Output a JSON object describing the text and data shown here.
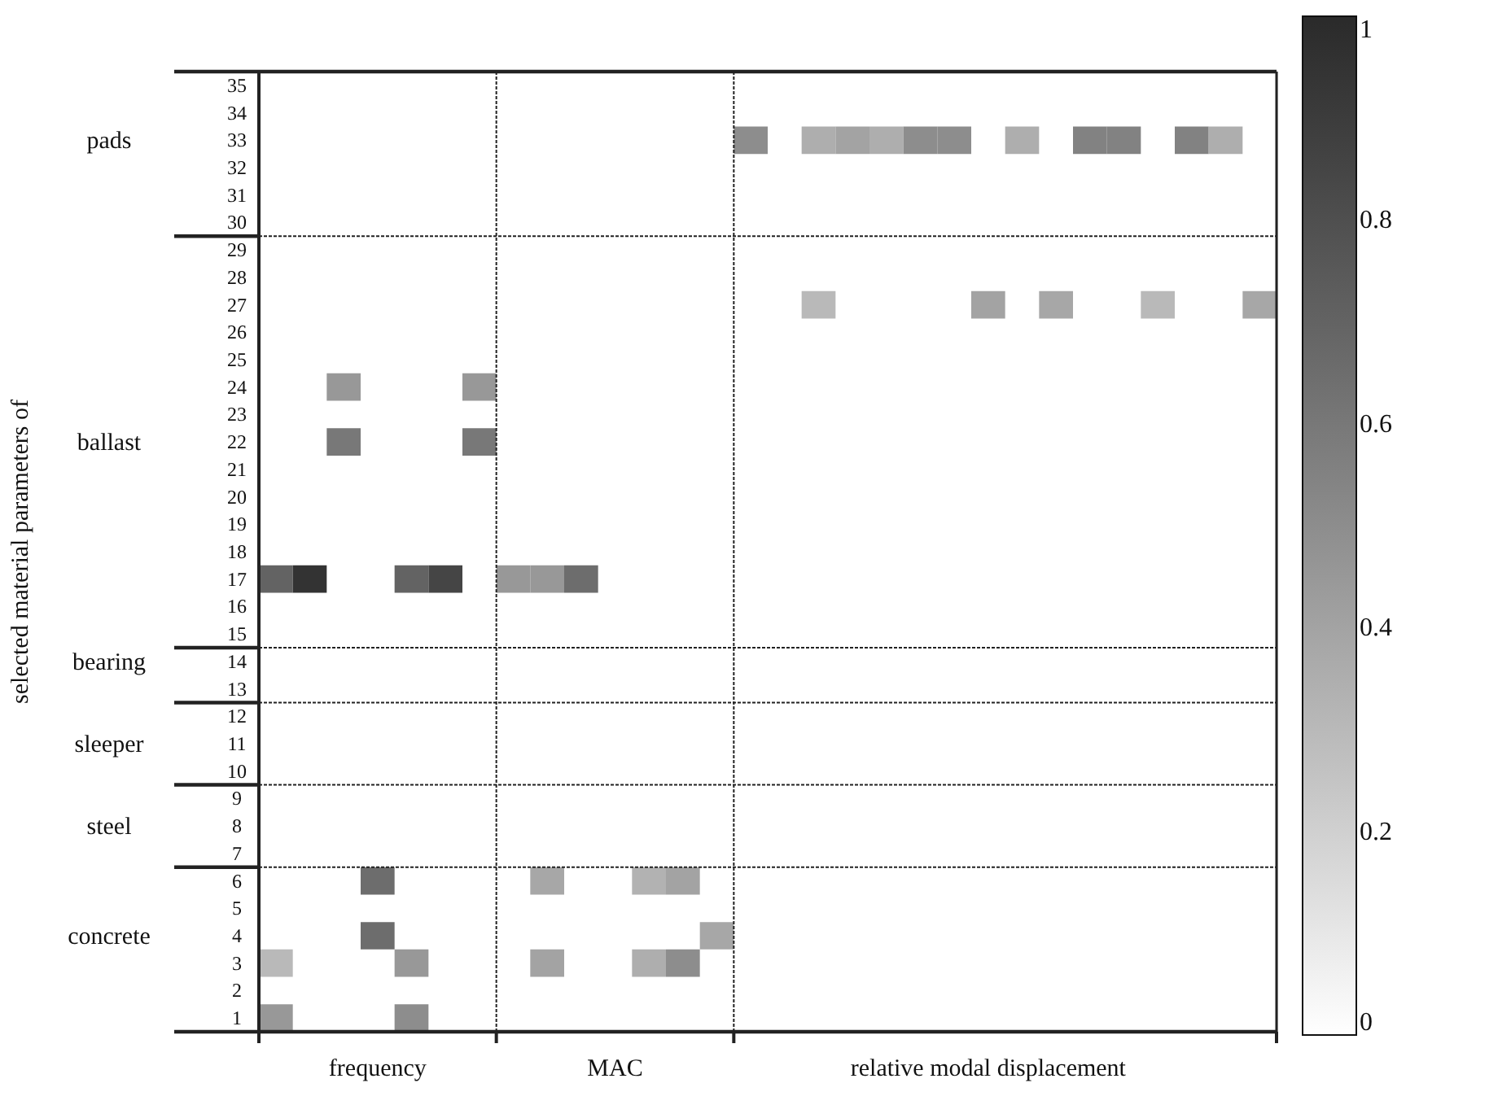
{
  "chart_data": {
    "type": "heatmap",
    "annotations": [
      "selected material parameters of"
    ],
    "categories": [
      null,
      null,
      null,
      "frequency",
      null,
      null,
      null,
      null,
      null,
      null,
      "MAC",
      null,
      null,
      null,
      null,
      null,
      null,
      null,
      null,
      null,
      null,
      "relative modal displacement",
      null,
      null,
      null,
      null,
      null,
      null,
      null,
      null
    ],
    "y2_categories": [
      null,
      null,
      "pads",
      null,
      null,
      null,
      null,
      null,
      null,
      null,
      null,
      null,
      null,
      "ballast",
      null,
      null,
      null,
      null,
      null,
      null,
      null,
      "bearing",
      null,
      null,
      "sleeper",
      null,
      null,
      "steel",
      null,
      null,
      null,
      "concrete",
      null,
      null,
      null
    ],
    "y_categories": [
      "35",
      "34",
      "33",
      "32",
      "31",
      "30",
      "29",
      "28",
      "27",
      "26",
      "25",
      "24",
      "23",
      "22",
      "21",
      "20",
      "19",
      "18",
      "17",
      "16",
      "15",
      "14",
      "13",
      "12",
      "11",
      "10",
      "9",
      "8",
      "7",
      "6",
      "5",
      "4",
      "3",
      "2",
      "1"
    ],
    "cells": [
      [
        null,
        null,
        null,
        null,
        null,
        null,
        null,
        null,
        null,
        null,
        null,
        null,
        null,
        null,
        null,
        null,
        null,
        null,
        null,
        null,
        null,
        null,
        null,
        null,
        null,
        null,
        null,
        null,
        null,
        null
      ],
      [
        null,
        null,
        null,
        null,
        null,
        null,
        null,
        null,
        null,
        null,
        null,
        null,
        null,
        null,
        null,
        null,
        null,
        null,
        null,
        null,
        null,
        null,
        null,
        null,
        null,
        null,
        null,
        null,
        null,
        null
      ],
      [
        null,
        null,
        null,
        null,
        null,
        null,
        null,
        null,
        null,
        null,
        null,
        null,
        null,
        null,
        0.5,
        null,
        0.35,
        0.4,
        0.35,
        0.5,
        0.5,
        null,
        0.35,
        null,
        0.55,
        0.55,
        null,
        0.55,
        0.35,
        null
      ],
      [
        null,
        null,
        null,
        null,
        null,
        null,
        null,
        null,
        null,
        null,
        null,
        null,
        null,
        null,
        null,
        null,
        null,
        null,
        null,
        null,
        null,
        null,
        null,
        null,
        null,
        null,
        null,
        null,
        null,
        null
      ],
      [
        null,
        null,
        null,
        null,
        null,
        null,
        null,
        null,
        null,
        null,
        null,
        null,
        null,
        null,
        null,
        null,
        null,
        null,
        null,
        null,
        null,
        null,
        null,
        null,
        null,
        null,
        null,
        null,
        null,
        null
      ],
      [
        null,
        null,
        null,
        null,
        null,
        null,
        null,
        null,
        null,
        null,
        null,
        null,
        null,
        null,
        null,
        null,
        null,
        null,
        null,
        null,
        null,
        null,
        null,
        null,
        null,
        null,
        null,
        null,
        null,
        null
      ],
      [
        null,
        null,
        null,
        null,
        null,
        null,
        null,
        null,
        null,
        null,
        null,
        null,
        null,
        null,
        null,
        null,
        null,
        null,
        null,
        null,
        null,
        null,
        null,
        null,
        null,
        null,
        null,
        null,
        null,
        null
      ],
      [
        null,
        null,
        null,
        null,
        null,
        null,
        null,
        null,
        null,
        null,
        null,
        null,
        null,
        null,
        null,
        null,
        null,
        null,
        null,
        null,
        null,
        null,
        null,
        null,
        null,
        null,
        null,
        null,
        null,
        null
      ],
      [
        null,
        null,
        null,
        null,
        null,
        null,
        null,
        null,
        null,
        null,
        null,
        null,
        null,
        null,
        null,
        null,
        0.3,
        null,
        null,
        null,
        null,
        0.4,
        null,
        0.38,
        null,
        null,
        0.3,
        null,
        null,
        0.38
      ],
      [
        null,
        null,
        null,
        null,
        null,
        null,
        null,
        null,
        null,
        null,
        null,
        null,
        null,
        null,
        null,
        null,
        null,
        null,
        null,
        null,
        null,
        null,
        null,
        null,
        null,
        null,
        null,
        null,
        null,
        null
      ],
      [
        null,
        null,
        null,
        null,
        null,
        null,
        null,
        null,
        null,
        null,
        null,
        null,
        null,
        null,
        null,
        null,
        null,
        null,
        null,
        null,
        null,
        null,
        null,
        null,
        null,
        null,
        null,
        null,
        null,
        null
      ],
      [
        null,
        null,
        0.45,
        null,
        null,
        null,
        0.45,
        null,
        null,
        null,
        null,
        null,
        null,
        null,
        null,
        null,
        null,
        null,
        null,
        null,
        null,
        null,
        null,
        null,
        null,
        null,
        null,
        null,
        null,
        null
      ],
      [
        null,
        null,
        null,
        null,
        null,
        null,
        null,
        null,
        null,
        null,
        null,
        null,
        null,
        null,
        null,
        null,
        null,
        null,
        null,
        null,
        null,
        null,
        null,
        null,
        null,
        null,
        null,
        null,
        null,
        null
      ],
      [
        null,
        null,
        0.6,
        null,
        null,
        null,
        0.6,
        null,
        null,
        null,
        null,
        null,
        null,
        null,
        null,
        null,
        null,
        null,
        null,
        null,
        null,
        null,
        null,
        null,
        null,
        null,
        null,
        null,
        null,
        null
      ],
      [
        null,
        null,
        null,
        null,
        null,
        null,
        null,
        null,
        null,
        null,
        null,
        null,
        null,
        null,
        null,
        null,
        null,
        null,
        null,
        null,
        null,
        null,
        null,
        null,
        null,
        null,
        null,
        null,
        null,
        null
      ],
      [
        null,
        null,
        null,
        null,
        null,
        null,
        null,
        null,
        null,
        null,
        null,
        null,
        null,
        null,
        null,
        null,
        null,
        null,
        null,
        null,
        null,
        null,
        null,
        null,
        null,
        null,
        null,
        null,
        null,
        null
      ],
      [
        null,
        null,
        null,
        null,
        null,
        null,
        null,
        null,
        null,
        null,
        null,
        null,
        null,
        null,
        null,
        null,
        null,
        null,
        null,
        null,
        null,
        null,
        null,
        null,
        null,
        null,
        null,
        null,
        null,
        null
      ],
      [
        null,
        null,
        null,
        null,
        null,
        null,
        null,
        null,
        null,
        null,
        null,
        null,
        null,
        null,
        null,
        null,
        null,
        null,
        null,
        null,
        null,
        null,
        null,
        null,
        null,
        null,
        null,
        null,
        null,
        null
      ],
      [
        0.7,
        0.95,
        null,
        null,
        0.7,
        0.85,
        null,
        0.45,
        0.45,
        0.65,
        null,
        null,
        null,
        null,
        null,
        null,
        null,
        null,
        null,
        null,
        null,
        null,
        null,
        null,
        null,
        null,
        null,
        null,
        null,
        null
      ],
      [
        null,
        null,
        null,
        null,
        null,
        null,
        null,
        null,
        null,
        null,
        null,
        null,
        null,
        null,
        null,
        null,
        null,
        null,
        null,
        null,
        null,
        null,
        null,
        null,
        null,
        null,
        null,
        null,
        null,
        null
      ],
      [
        null,
        null,
        null,
        null,
        null,
        null,
        null,
        null,
        null,
        null,
        null,
        null,
        null,
        null,
        null,
        null,
        null,
        null,
        null,
        null,
        null,
        null,
        null,
        null,
        null,
        null,
        null,
        null,
        null,
        null
      ],
      [
        null,
        null,
        null,
        null,
        null,
        null,
        null,
        null,
        null,
        null,
        null,
        null,
        null,
        null,
        null,
        null,
        null,
        null,
        null,
        null,
        null,
        null,
        null,
        null,
        null,
        null,
        null,
        null,
        null,
        null
      ],
      [
        null,
        null,
        null,
        null,
        null,
        null,
        null,
        null,
        null,
        null,
        null,
        null,
        null,
        null,
        null,
        null,
        null,
        null,
        null,
        null,
        null,
        null,
        null,
        null,
        null,
        null,
        null,
        null,
        null,
        null
      ],
      [
        null,
        null,
        null,
        null,
        null,
        null,
        null,
        null,
        null,
        null,
        null,
        null,
        null,
        null,
        null,
        null,
        null,
        null,
        null,
        null,
        null,
        null,
        null,
        null,
        null,
        null,
        null,
        null,
        null,
        null
      ],
      [
        null,
        null,
        null,
        null,
        null,
        null,
        null,
        null,
        null,
        null,
        null,
        null,
        null,
        null,
        null,
        null,
        null,
        null,
        null,
        null,
        null,
        null,
        null,
        null,
        null,
        null,
        null,
        null,
        null,
        null
      ],
      [
        null,
        null,
        null,
        null,
        null,
        null,
        null,
        null,
        null,
        null,
        null,
        null,
        null,
        null,
        null,
        null,
        null,
        null,
        null,
        null,
        null,
        null,
        null,
        null,
        null,
        null,
        null,
        null,
        null,
        null
      ],
      [
        null,
        null,
        null,
        null,
        null,
        null,
        null,
        null,
        null,
        null,
        null,
        null,
        null,
        null,
        null,
        null,
        null,
        null,
        null,
        null,
        null,
        null,
        null,
        null,
        null,
        null,
        null,
        null,
        null,
        null
      ],
      [
        null,
        null,
        null,
        null,
        null,
        null,
        null,
        null,
        null,
        null,
        null,
        null,
        null,
        null,
        null,
        null,
        null,
        null,
        null,
        null,
        null,
        null,
        null,
        null,
        null,
        null,
        null,
        null,
        null,
        null
      ],
      [
        null,
        null,
        null,
        null,
        null,
        null,
        null,
        null,
        null,
        null,
        null,
        null,
        null,
        null,
        null,
        null,
        null,
        null,
        null,
        null,
        null,
        null,
        null,
        null,
        null,
        null,
        null,
        null,
        null,
        null
      ],
      [
        null,
        null,
        null,
        0.65,
        null,
        null,
        null,
        null,
        0.38,
        null,
        null,
        0.33,
        0.4,
        null,
        null,
        null,
        null,
        null,
        null,
        null,
        null,
        null,
        null,
        null,
        null,
        null,
        null,
        null,
        null,
        null
      ],
      [
        null,
        null,
        null,
        null,
        null,
        null,
        null,
        null,
        null,
        null,
        null,
        null,
        null,
        null,
        null,
        null,
        null,
        null,
        null,
        null,
        null,
        null,
        null,
        null,
        null,
        null,
        null,
        null,
        null,
        null
      ],
      [
        null,
        null,
        null,
        0.65,
        null,
        null,
        null,
        null,
        null,
        null,
        null,
        null,
        null,
        0.38,
        null,
        null,
        null,
        null,
        null,
        null,
        null,
        null,
        null,
        null,
        null,
        null,
        null,
        null,
        null,
        null
      ],
      [
        0.3,
        null,
        null,
        null,
        0.45,
        null,
        null,
        null,
        0.4,
        null,
        null,
        0.35,
        0.5,
        null,
        null,
        null,
        null,
        null,
        null,
        null,
        null,
        null,
        null,
        null,
        null,
        null,
        null,
        null,
        null,
        null
      ],
      [
        null,
        null,
        null,
        null,
        null,
        null,
        null,
        null,
        null,
        null,
        null,
        null,
        null,
        null,
        null,
        null,
        null,
        null,
        null,
        null,
        null,
        null,
        null,
        null,
        null,
        null,
        null,
        null,
        null,
        null
      ],
      [
        0.45,
        null,
        null,
        null,
        0.5,
        null,
        null,
        null,
        null,
        null,
        null,
        null,
        null,
        null,
        null,
        null,
        null,
        null,
        null,
        null,
        null,
        null,
        null,
        null,
        null,
        null,
        null,
        null,
        null,
        null
      ]
    ],
    "clim": [
      0,
      1
    ],
    "cticks": [
      0,
      0.2,
      0.4,
      0.6,
      0.8,
      1
    ]
  }
}
